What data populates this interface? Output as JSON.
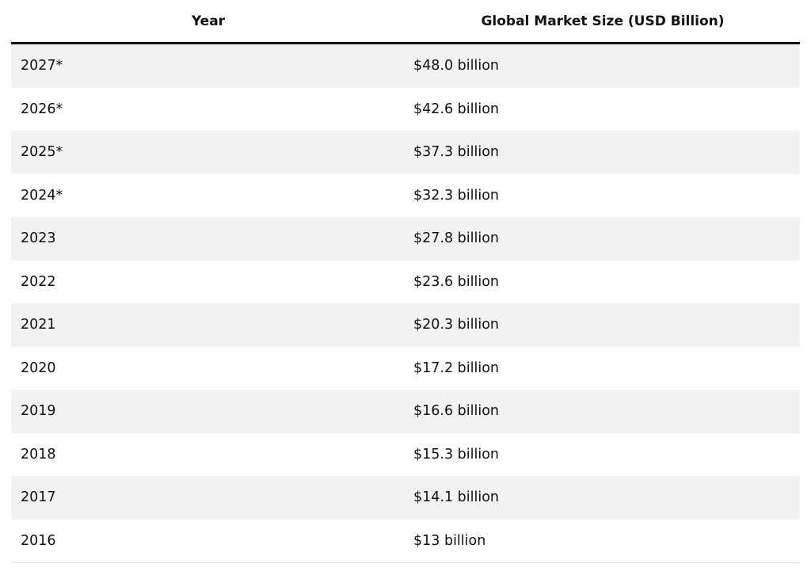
{
  "table": {
    "headers": [
      "Year",
      "Global Market Size (USD Billion)"
    ],
    "rows": [
      {
        "year": "2027*",
        "value": "$48.0 billion"
      },
      {
        "year": "2026*",
        "value": "$42.6 billion"
      },
      {
        "year": "2025*",
        "value": "$37.3 billion"
      },
      {
        "year": "2024*",
        "value": "$32.3 billion"
      },
      {
        "year": "2023",
        "value": "$27.8 billion"
      },
      {
        "year": "2022",
        "value": "$23.6 billion"
      },
      {
        "year": "2021",
        "value": "$20.3 billion"
      },
      {
        "year": "2020",
        "value": "$17.2 billion"
      },
      {
        "year": "2019",
        "value": "$16.6 billion"
      },
      {
        "year": "2018",
        "value": "$15.3 billion"
      },
      {
        "year": "2017",
        "value": "$14.1 billion"
      },
      {
        "year": "2016",
        "value": "$13 billion"
      }
    ]
  },
  "colors": {
    "stripe": "#f2f2f2",
    "header_rule": "#111111"
  }
}
